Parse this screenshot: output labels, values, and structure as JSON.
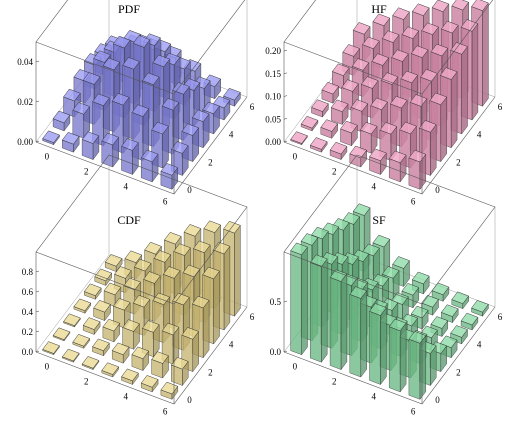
{
  "chart_data": [
    {
      "type": "bar3d",
      "title": "PDF",
      "x_ticks": [
        "0",
        "2",
        "4",
        "6"
      ],
      "y_ticks": [
        "0",
        "2",
        "4",
        "6"
      ],
      "z_ticks": [
        "0.00",
        "0.02",
        "0.04"
      ],
      "zlim": [
        0,
        0.05
      ],
      "color": "#8c8cf0",
      "grid_x": [
        0,
        1,
        2,
        3,
        4,
        5,
        6
      ],
      "grid_y": [
        0,
        1,
        2,
        3,
        4,
        5,
        6
      ],
      "values": [
        [
          0.001,
          0.004,
          0.008,
          0.011,
          0.012,
          0.01,
          0.007
        ],
        [
          0.004,
          0.012,
          0.02,
          0.024,
          0.022,
          0.017,
          0.011
        ],
        [
          0.008,
          0.02,
          0.031,
          0.035,
          0.031,
          0.022,
          0.013
        ],
        [
          0.011,
          0.024,
          0.035,
          0.039,
          0.033,
          0.023,
          0.013
        ],
        [
          0.012,
          0.022,
          0.031,
          0.033,
          0.027,
          0.018,
          0.01
        ],
        [
          0.01,
          0.017,
          0.022,
          0.023,
          0.018,
          0.012,
          0.006
        ],
        [
          0.007,
          0.011,
          0.013,
          0.013,
          0.01,
          0.006,
          0.003
        ]
      ]
    },
    {
      "type": "bar3d",
      "title": "HF",
      "x_ticks": [
        "0",
        "2",
        "4",
        "6"
      ],
      "y_ticks": [
        "0",
        "2",
        "4",
        "6"
      ],
      "z_ticks": [
        "0.00",
        "0.05",
        "0.10",
        "0.15",
        "0.20"
      ],
      "zlim": [
        0,
        0.22
      ],
      "color": "#ee9cc0",
      "grid_x": [
        0,
        1,
        2,
        3,
        4,
        5,
        6
      ],
      "grid_y": [
        0,
        1,
        2,
        3,
        4,
        5,
        6
      ],
      "values": [
        [
          0.002,
          0.006,
          0.012,
          0.02,
          0.03,
          0.042,
          0.06
        ],
        [
          0.006,
          0.015,
          0.028,
          0.042,
          0.058,
          0.075,
          0.095
        ],
        [
          0.012,
          0.028,
          0.045,
          0.065,
          0.085,
          0.105,
          0.125
        ],
        [
          0.02,
          0.042,
          0.065,
          0.09,
          0.11,
          0.13,
          0.15
        ],
        [
          0.03,
          0.058,
          0.085,
          0.11,
          0.135,
          0.155,
          0.175
        ],
        [
          0.042,
          0.075,
          0.105,
          0.13,
          0.155,
          0.175,
          0.195
        ],
        [
          0.06,
          0.095,
          0.125,
          0.15,
          0.175,
          0.195,
          0.21
        ]
      ]
    },
    {
      "type": "bar3d",
      "title": "CDF",
      "x_ticks": [
        "0",
        "2",
        "4",
        "6"
      ],
      "y_ticks": [
        "0",
        "2",
        "4",
        "6"
      ],
      "z_ticks": [
        "0.0",
        "0.2",
        "0.4",
        "0.6",
        "0.8"
      ],
      "zlim": [
        0,
        1.0
      ],
      "color": "#e6d383",
      "grid_x": [
        0,
        1,
        2,
        3,
        4,
        5,
        6
      ],
      "grid_y": [
        0,
        1,
        2,
        3,
        4,
        5,
        6
      ],
      "values": [
        [
          0.001,
          0.005,
          0.013,
          0.024,
          0.036,
          0.046,
          0.053
        ],
        [
          0.005,
          0.021,
          0.049,
          0.084,
          0.118,
          0.145,
          0.163
        ],
        [
          0.013,
          0.049,
          0.108,
          0.178,
          0.243,
          0.292,
          0.323
        ],
        [
          0.024,
          0.084,
          0.178,
          0.283,
          0.381,
          0.453,
          0.497
        ],
        [
          0.036,
          0.118,
          0.243,
          0.381,
          0.506,
          0.596,
          0.65
        ],
        [
          0.046,
          0.145,
          0.292,
          0.453,
          0.596,
          0.698,
          0.76
        ],
        [
          0.053,
          0.163,
          0.323,
          0.497,
          0.65,
          0.76,
          0.83
        ]
      ]
    },
    {
      "type": "bar3d",
      "title": "SF",
      "x_ticks": [
        "0",
        "2",
        "4",
        "6"
      ],
      "y_ticks": [
        "0",
        "2",
        "4",
        "6"
      ],
      "z_ticks": [
        "0.0",
        "0.5"
      ],
      "zlim": [
        0,
        1.0
      ],
      "color": "#7ed69a",
      "grid_x": [
        0,
        1,
        2,
        3,
        4,
        5,
        6
      ],
      "grid_y": [
        0,
        1,
        2,
        3,
        4,
        5,
        6
      ],
      "values": [
        [
          0.999,
          0.955,
          0.88,
          0.785,
          0.69,
          0.61,
          0.56
        ],
        [
          0.955,
          0.84,
          0.7,
          0.56,
          0.45,
          0.37,
          0.32
        ],
        [
          0.88,
          0.7,
          0.52,
          0.38,
          0.28,
          0.22,
          0.18
        ],
        [
          0.785,
          0.56,
          0.38,
          0.25,
          0.17,
          0.125,
          0.1
        ],
        [
          0.69,
          0.45,
          0.28,
          0.17,
          0.11,
          0.08,
          0.065
        ],
        [
          0.61,
          0.37,
          0.22,
          0.125,
          0.08,
          0.06,
          0.05
        ],
        [
          0.56,
          0.32,
          0.18,
          0.1,
          0.065,
          0.05,
          0.04
        ]
      ]
    }
  ]
}
